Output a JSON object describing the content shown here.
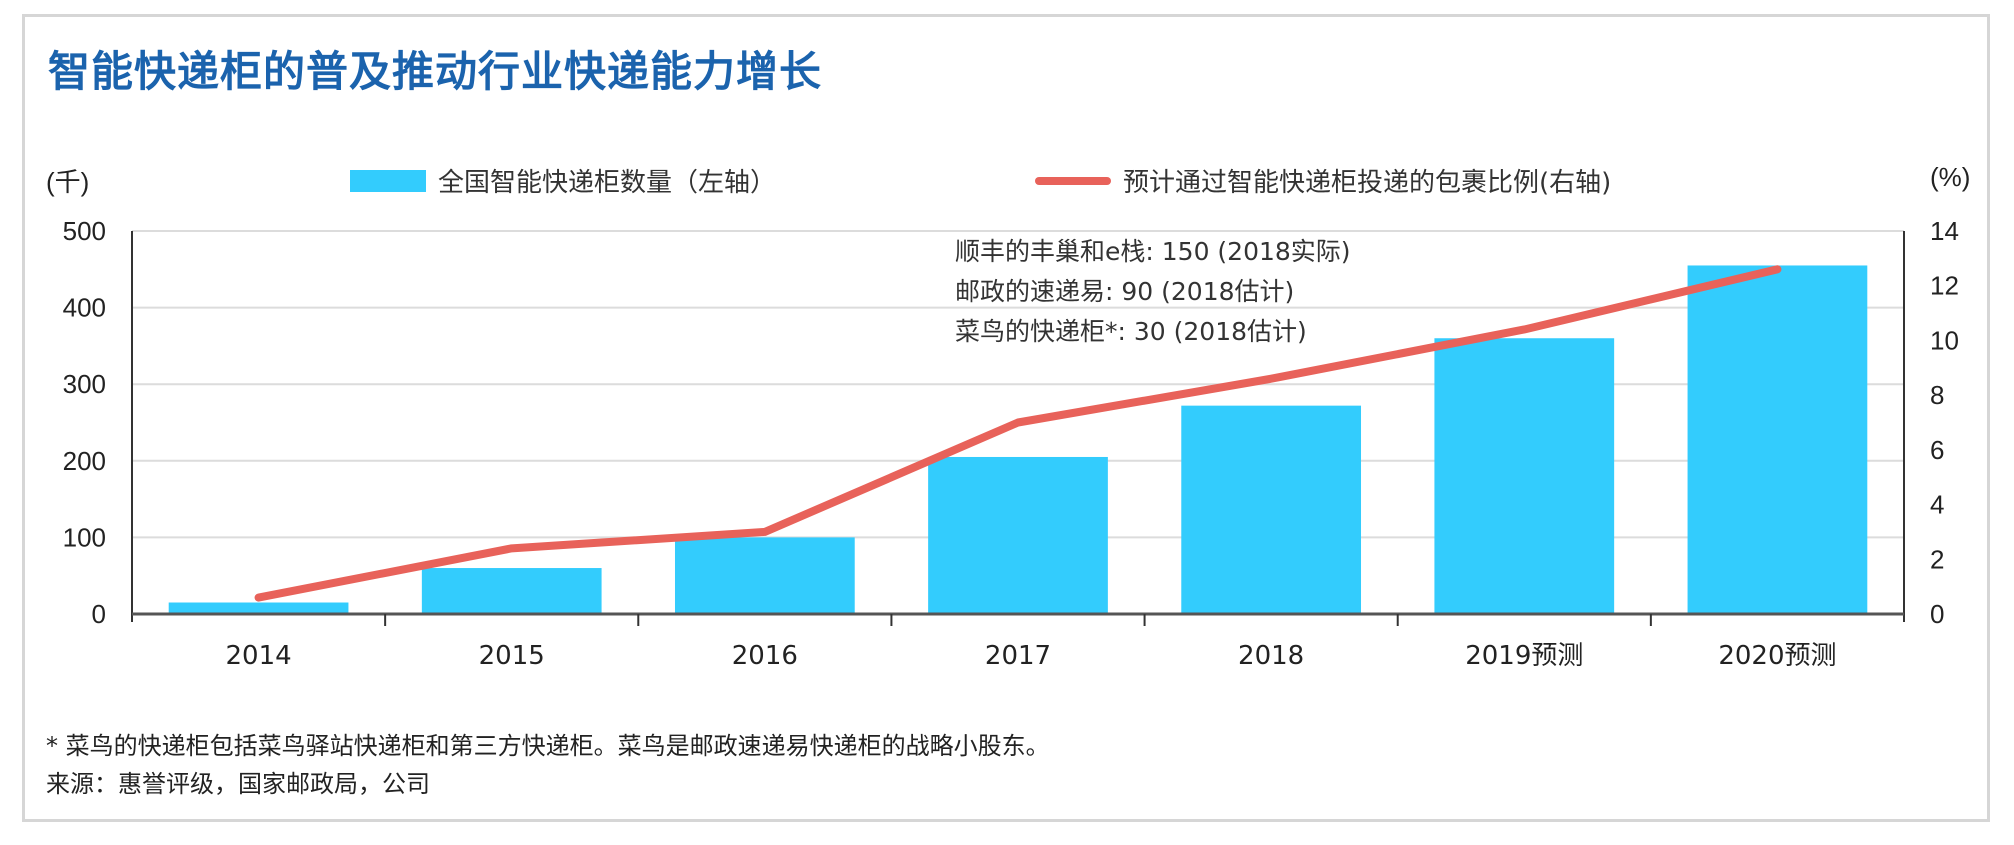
{
  "chart_data": {
    "type": "bar",
    "title": "智能快递柜的普及推动行业快递能力增长",
    "categories": [
      "2014",
      "2015",
      "2016",
      "2017",
      "2018",
      "2019预测",
      "2020预测"
    ],
    "series": [
      {
        "name": "全国智能快递柜数量（左轴）",
        "type": "bar",
        "axis": "left",
        "color": "#33ccfd",
        "values": [
          15,
          60,
          100,
          205,
          272,
          360,
          455
        ]
      },
      {
        "name": "预计通过智能快递柜投递的包裹比例(右轴)",
        "type": "line",
        "axis": "right",
        "color": "#e8625a",
        "values": [
          0.6,
          2.4,
          3.0,
          7.0,
          8.6,
          10.4,
          12.6
        ]
      }
    ],
    "ylabel_left": "(千)",
    "ylabel_right": "(%)",
    "ylim_left": [
      0,
      500
    ],
    "ylim_right": [
      0,
      14
    ],
    "yticks_left": [
      "0",
      "100",
      "200",
      "300",
      "400",
      "500"
    ],
    "yticks_right": [
      "0",
      "2",
      "4",
      "6",
      "8",
      "10",
      "12",
      "14"
    ],
    "grid": true,
    "legend_position": "top",
    "annotations": [
      "顺丰的丰巢和e栈: 150 (2018实际)",
      "邮政的速递易: 90 (2018估计)",
      "菜鸟的快递柜*: 30 (2018估计)"
    ]
  },
  "footnotes": {
    "note": "* 菜鸟的快递柜包括菜鸟驿站快递柜和第三方快递柜。菜鸟是邮政速递易快递柜的战略小股东。",
    "source": "来源：惠誉评级，国家邮政局，公司"
  }
}
